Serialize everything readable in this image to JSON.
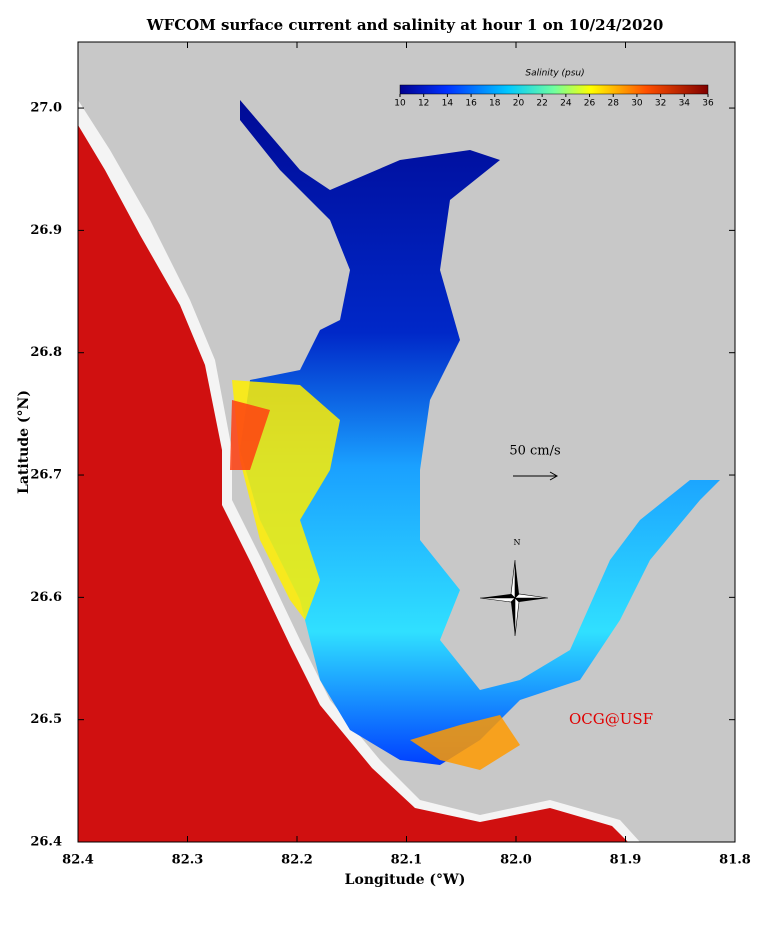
{
  "title": "WFCOM surface current and salinity at hour 1 on 10/24/2020",
  "x_axis": {
    "label": "Longitude (°W)",
    "lim": [
      82.4,
      81.8
    ],
    "ticks": [
      82.4,
      82.3,
      82.2,
      82.1,
      {
        "value": 82,
        "label": "82.0"
      },
      81.9,
      81.8
    ]
  },
  "y_axis": {
    "label": "Latitude (°N)",
    "lim": [
      26.4,
      27.054
    ],
    "ticks": [
      {
        "value": 27,
        "label": "27.0"
      },
      26.9,
      26.8,
      26.7,
      26.6,
      26.5,
      26.4
    ]
  },
  "colorbar": {
    "title": "Salinity (psu)",
    "lim": [
      10,
      36
    ],
    "ticks": [
      10,
      12,
      14,
      16,
      18,
      20,
      22,
      24,
      26,
      28,
      30,
      32,
      34,
      36
    ]
  },
  "scale_label": "50 cm/s",
  "compass": "N",
  "credit": "OCG@USF"
}
